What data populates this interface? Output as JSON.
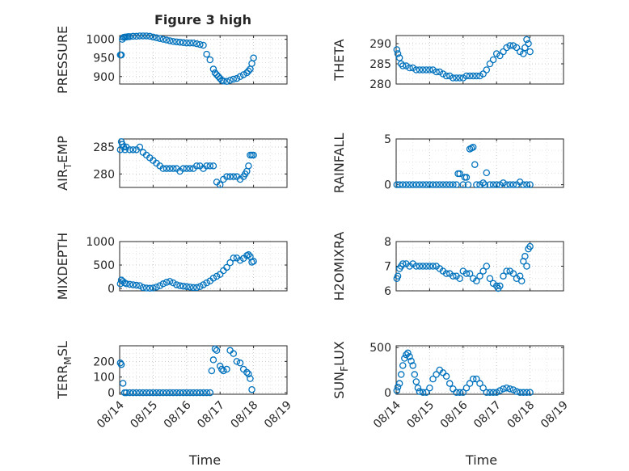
{
  "figure_title": "Figure 3 high",
  "colors": {
    "marker": "#0072BD",
    "axes": "#262626",
    "grid": "#c8c8c8"
  },
  "chart_data": [
    {
      "type": "scatter",
      "id": "pressure",
      "title": "Figure 3 high",
      "ylabel": "PRESSURE",
      "xlabel": "",
      "xlim": [
        0,
        5
      ],
      "ylim": [
        880,
        1010
      ],
      "yticks": [
        900,
        950,
        1000
      ],
      "grid": true,
      "show_xticklabels": false,
      "x": [
        0.02,
        0.05,
        0.08,
        0.12,
        0.16,
        0.2,
        0.25,
        0.3,
        0.4,
        0.5,
        0.6,
        0.7,
        0.8,
        0.9,
        1.0,
        1.1,
        1.2,
        1.3,
        1.4,
        1.5,
        1.6,
        1.7,
        1.8,
        1.9,
        2.0,
        2.1,
        2.2,
        2.3,
        2.4,
        2.5,
        2.6,
        2.7,
        2.8,
        2.85,
        2.9,
        2.95,
        3.0,
        3.05,
        3.1,
        3.2,
        3.3,
        3.4,
        3.5,
        3.6,
        3.7,
        3.8,
        3.85,
        3.9,
        3.95,
        4.0
      ],
      "y": [
        958,
        958,
        1000,
        1005,
        1006,
        1006,
        1007,
        1007,
        1008,
        1008,
        1009,
        1009,
        1009,
        1008,
        1006,
        1004,
        1002,
        1000,
        998,
        996,
        994,
        993,
        992,
        991,
        990,
        990,
        990,
        988,
        986,
        984,
        960,
        945,
        920,
        910,
        905,
        900,
        895,
        890,
        888,
        887,
        890,
        893,
        895,
        900,
        905,
        910,
        915,
        920,
        935,
        950
      ]
    },
    {
      "type": "scatter",
      "id": "theta",
      "title": "",
      "ylabel": "THETA",
      "xlabel": "",
      "xlim": [
        0,
        5
      ],
      "ylim": [
        280,
        292
      ],
      "yticks": [
        280,
        285,
        290
      ],
      "grid": true,
      "show_xticklabels": false,
      "x": [
        0.02,
        0.05,
        0.1,
        0.15,
        0.2,
        0.3,
        0.4,
        0.5,
        0.6,
        0.7,
        0.8,
        0.9,
        1.0,
        1.1,
        1.2,
        1.3,
        1.4,
        1.5,
        1.6,
        1.7,
        1.8,
        1.9,
        2.0,
        2.1,
        2.2,
        2.3,
        2.4,
        2.5,
        2.6,
        2.7,
        2.8,
        2.9,
        3.0,
        3.1,
        3.2,
        3.3,
        3.4,
        3.5,
        3.6,
        3.7,
        3.8,
        3.85,
        3.9,
        3.95,
        4.0
      ],
      "y": [
        288.5,
        287.5,
        286.5,
        285,
        284.5,
        284.5,
        284,
        284,
        283.5,
        283.5,
        283.5,
        283.5,
        283.5,
        283.5,
        283,
        283,
        282.5,
        282,
        282,
        281.5,
        281.5,
        281.5,
        281.5,
        282,
        282,
        282,
        282,
        282,
        282.5,
        283.5,
        285,
        286,
        287.5,
        287,
        288,
        289,
        289.5,
        289.5,
        289,
        288,
        287.5,
        289,
        291,
        290,
        288
      ]
    },
    {
      "type": "scatter",
      "id": "air_temp",
      "title": "",
      "ylabel": "AIR_TEMP",
      "xlabel": "",
      "xlim": [
        0,
        5
      ],
      "ylim": [
        277.5,
        286.5
      ],
      "yticks": [
        280,
        285
      ],
      "grid": true,
      "show_xticklabels": false,
      "x": [
        0.02,
        0.05,
        0.08,
        0.12,
        0.16,
        0.2,
        0.3,
        0.4,
        0.5,
        0.6,
        0.7,
        0.8,
        0.9,
        1.0,
        1.1,
        1.2,
        1.3,
        1.4,
        1.5,
        1.6,
        1.7,
        1.8,
        1.9,
        2.0,
        2.1,
        2.2,
        2.3,
        2.4,
        2.5,
        2.6,
        2.7,
        2.8,
        2.9,
        3.0,
        3.1,
        3.2,
        3.3,
        3.4,
        3.5,
        3.6,
        3.7,
        3.75,
        3.8,
        3.85,
        3.9,
        3.95,
        4.0
      ],
      "y": [
        284.5,
        286,
        285.5,
        285,
        284.5,
        285,
        284.5,
        284.5,
        284.5,
        285,
        284,
        283.5,
        283,
        282.5,
        282,
        281.5,
        281,
        281,
        281,
        281,
        281,
        280.5,
        281,
        281,
        281,
        281,
        281.5,
        281.5,
        281,
        281.5,
        281.5,
        281.5,
        278.5,
        278,
        279,
        279.5,
        279.5,
        279.5,
        279.5,
        279,
        279.5,
        280,
        280.5,
        281.5,
        283.5,
        283.5,
        283.5
      ]
    },
    {
      "type": "scatter",
      "id": "rainfall",
      "title": "",
      "ylabel": "RAINFALL",
      "xlabel": "",
      "xlim": [
        0,
        5
      ],
      "ylim": [
        -0.3,
        5
      ],
      "yticks": [
        0,
        5
      ],
      "grid": true,
      "show_xticklabels": false,
      "x": [
        0.02,
        0.1,
        0.2,
        0.3,
        0.4,
        0.5,
        0.6,
        0.7,
        0.8,
        0.9,
        1.0,
        1.1,
        1.2,
        1.3,
        1.4,
        1.5,
        1.6,
        1.7,
        1.8,
        1.85,
        1.9,
        2.0,
        2.05,
        2.1,
        2.15,
        2.2,
        2.25,
        2.3,
        2.35,
        2.4,
        2.5,
        2.6,
        2.65,
        2.7,
        2.8,
        2.9,
        3.0,
        3.1,
        3.2,
        3.3,
        3.4,
        3.5,
        3.6,
        3.7,
        3.8,
        3.9,
        4.0
      ],
      "y": [
        0,
        0,
        0,
        0,
        0,
        0,
        0,
        0,
        0,
        0,
        0,
        0,
        0,
        0,
        0,
        0,
        0,
        0,
        0,
        1.2,
        1.2,
        0,
        0.8,
        0.8,
        0,
        3.9,
        4.0,
        4.1,
        2.2,
        0,
        0,
        0.2,
        0,
        1.3,
        0,
        0,
        0,
        0,
        0.2,
        0,
        0,
        0,
        0,
        0.3,
        0,
        0,
        0
      ]
    },
    {
      "type": "scatter",
      "id": "mixdepth",
      "title": "",
      "ylabel": "MIXDEPTH",
      "xlabel": "",
      "xlim": [
        0,
        5
      ],
      "ylim": [
        -50,
        1000
      ],
      "yticks": [
        0,
        500,
        1000
      ],
      "grid": true,
      "show_xticklabels": false,
      "x": [
        0.02,
        0.05,
        0.1,
        0.15,
        0.2,
        0.3,
        0.4,
        0.5,
        0.6,
        0.7,
        0.8,
        0.9,
        1.0,
        1.1,
        1.2,
        1.3,
        1.4,
        1.5,
        1.6,
        1.7,
        1.8,
        1.9,
        2.0,
        2.1,
        2.2,
        2.3,
        2.4,
        2.5,
        2.6,
        2.7,
        2.8,
        2.9,
        3.0,
        3.1,
        3.2,
        3.3,
        3.4,
        3.5,
        3.6,
        3.7,
        3.8,
        3.85,
        3.9,
        3.95,
        4.0
      ],
      "y": [
        100,
        180,
        150,
        120,
        100,
        90,
        80,
        70,
        60,
        20,
        10,
        5,
        10,
        30,
        60,
        100,
        130,
        150,
        120,
        80,
        60,
        50,
        40,
        30,
        20,
        20,
        40,
        80,
        120,
        160,
        220,
        260,
        300,
        380,
        450,
        550,
        650,
        650,
        600,
        640,
        700,
        720,
        680,
        560,
        580
      ]
    },
    {
      "type": "scatter",
      "id": "h2omixra",
      "title": "",
      "ylabel": "H2OMIXRA",
      "xlabel": "",
      "xlim": [
        0,
        5
      ],
      "ylim": [
        6,
        8
      ],
      "yticks": [
        6,
        7,
        8
      ],
      "grid": true,
      "show_xticklabels": false,
      "x": [
        0.02,
        0.05,
        0.1,
        0.15,
        0.2,
        0.3,
        0.4,
        0.5,
        0.6,
        0.7,
        0.8,
        0.9,
        1.0,
        1.1,
        1.2,
        1.3,
        1.4,
        1.5,
        1.6,
        1.7,
        1.8,
        1.9,
        2.0,
        2.1,
        2.2,
        2.3,
        2.4,
        2.5,
        2.6,
        2.7,
        2.8,
        2.9,
        3.0,
        3.05,
        3.1,
        3.2,
        3.3,
        3.4,
        3.5,
        3.6,
        3.7,
        3.75,
        3.8,
        3.85,
        3.9,
        3.95,
        4.0
      ],
      "y": [
        6.5,
        6.6,
        6.9,
        7.0,
        7.1,
        7.1,
        7.0,
        7.1,
        7.0,
        7.0,
        7.0,
        7.0,
        7.0,
        7.0,
        7.0,
        6.9,
        6.8,
        6.7,
        6.7,
        6.6,
        6.6,
        6.5,
        6.8,
        6.7,
        6.7,
        6.5,
        6.4,
        6.6,
        6.8,
        7.0,
        6.5,
        6.3,
        6.2,
        6.1,
        6.2,
        6.6,
        6.8,
        6.8,
        6.7,
        6.5,
        6.6,
        6.4,
        7.2,
        7.4,
        7.0,
        7.7,
        7.8
      ]
    },
    {
      "type": "scatter",
      "id": "terr_msl",
      "title": "",
      "ylabel": "TERR_MSL",
      "xlabel": "Time",
      "xlim": [
        0,
        5
      ],
      "ylim": [
        -10,
        300
      ],
      "yticks": [
        0,
        100,
        200
      ],
      "grid": true,
      "show_xticklabels": true,
      "xtick_values": [
        0,
        1,
        2,
        3,
        4,
        5
      ],
      "xtick_labels": [
        "08/14",
        "08/15",
        "08/16",
        "08/17",
        "08/18",
        "08/19"
      ],
      "x": [
        0.02,
        0.05,
        0.1,
        0.15,
        0.2,
        0.3,
        0.4,
        0.5,
        0.6,
        0.7,
        0.8,
        0.9,
        1.0,
        1.1,
        1.2,
        1.3,
        1.4,
        1.5,
        1.6,
        1.7,
        1.8,
        1.9,
        2.0,
        2.1,
        2.2,
        2.3,
        2.4,
        2.5,
        2.6,
        2.7,
        2.75,
        2.8,
        2.85,
        2.9,
        3.0,
        3.05,
        3.1,
        3.2,
        3.3,
        3.4,
        3.5,
        3.6,
        3.7,
        3.8,
        3.85,
        3.9,
        3.95
      ],
      "y": [
        190,
        180,
        60,
        0,
        0,
        0,
        0,
        0,
        0,
        0,
        0,
        0,
        0,
        0,
        0,
        0,
        0,
        0,
        0,
        0,
        0,
        0,
        0,
        0,
        0,
        0,
        0,
        0,
        0,
        0,
        140,
        210,
        280,
        270,
        170,
        150,
        140,
        150,
        270,
        250,
        200,
        190,
        150,
        130,
        120,
        90,
        20
      ]
    },
    {
      "type": "scatter",
      "id": "sun_flux",
      "title": "",
      "ylabel": "SUN_FLUX",
      "xlabel": "Time",
      "xlim": [
        0,
        5
      ],
      "ylim": [
        -20,
        520
      ],
      "yticks": [
        0,
        500
      ],
      "grid": true,
      "show_xticklabels": true,
      "xtick_values": [
        0,
        1,
        2,
        3,
        4,
        5
      ],
      "xtick_labels": [
        "08/14",
        "08/15",
        "08/16",
        "08/17",
        "08/18",
        "08/19"
      ],
      "x": [
        0.02,
        0.05,
        0.1,
        0.15,
        0.2,
        0.25,
        0.3,
        0.35,
        0.4,
        0.45,
        0.5,
        0.55,
        0.6,
        0.65,
        0.7,
        0.8,
        0.9,
        1.0,
        1.1,
        1.2,
        1.3,
        1.4,
        1.5,
        1.6,
        1.7,
        1.8,
        1.9,
        2.0,
        2.1,
        2.2,
        2.3,
        2.4,
        2.5,
        2.6,
        2.7,
        2.8,
        2.9,
        3.0,
        3.1,
        3.2,
        3.3,
        3.4,
        3.5,
        3.6,
        3.7,
        3.8,
        3.9,
        4.0
      ],
      "y": [
        20,
        60,
        100,
        200,
        300,
        380,
        420,
        440,
        400,
        350,
        300,
        200,
        120,
        50,
        10,
        0,
        0,
        50,
        150,
        200,
        250,
        220,
        180,
        100,
        40,
        0,
        0,
        0,
        50,
        100,
        150,
        150,
        100,
        50,
        0,
        0,
        0,
        0,
        20,
        40,
        50,
        40,
        30,
        10,
        0,
        0,
        0,
        0
      ]
    }
  ]
}
